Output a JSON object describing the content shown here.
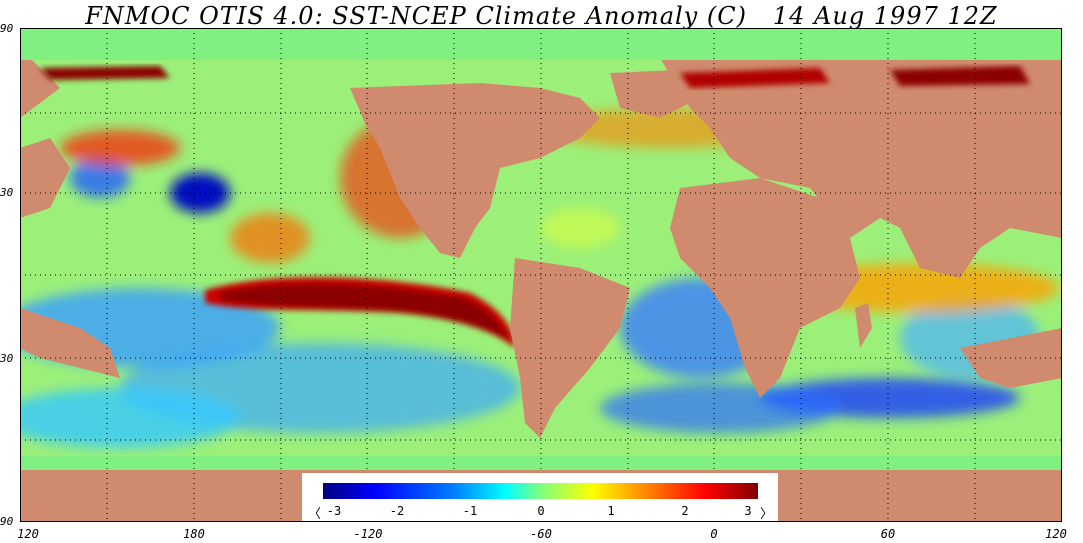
{
  "map": {
    "title": "FNMOC OTIS 4.0: SST-NCEP Climate Anomaly (C)   14 Aug 1997 12Z",
    "lat_labels": [
      "90",
      "30",
      "30",
      "90"
    ],
    "lon_labels": [
      "120",
      "180",
      "-120",
      "-60",
      "0",
      "60",
      "120"
    ],
    "colors": {
      "land": "#d08a6e",
      "ice": "#80f080",
      "grid": "#000000",
      "colorbar": [
        "#00007f",
        "#0000ff",
        "#007fff",
        "#00ffff",
        "#7fff7f",
        "#ffff00",
        "#ff7f00",
        "#ff0000",
        "#7f0000"
      ]
    },
    "colorbar": {
      "ticks": [
        "-3",
        "-2",
        "-1",
        "0",
        "1",
        "2",
        "3"
      ],
      "left_arrow": "〈",
      "right_arrow": "〉"
    }
  }
}
